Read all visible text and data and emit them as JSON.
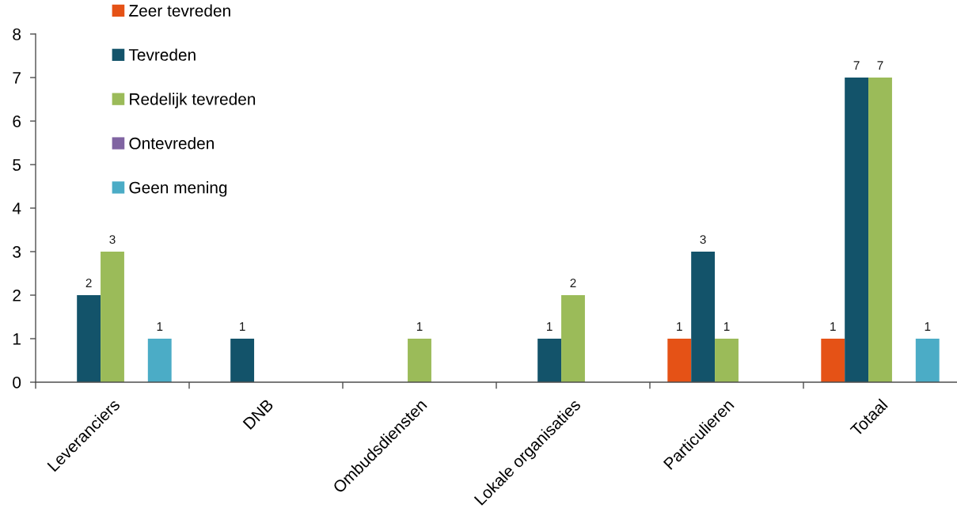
{
  "chart_data": {
    "type": "bar",
    "categories": [
      "Leveranciers",
      "DNB",
      "Ombudsdiensten",
      "Lokale organisaties",
      "Particulieren",
      "Totaal"
    ],
    "series": [
      {
        "name": "Zeer tevreden",
        "color": "#e55216",
        "values": [
          null,
          null,
          null,
          null,
          1,
          1
        ]
      },
      {
        "name": "Tevreden",
        "color": "#13536a",
        "values": [
          2,
          1,
          null,
          1,
          3,
          7
        ]
      },
      {
        "name": "Redelijk tevreden",
        "color": "#9bbb59",
        "values": [
          3,
          null,
          1,
          2,
          1,
          7
        ]
      },
      {
        "name": "Ontevreden",
        "color": "#8064a2",
        "values": [
          null,
          null,
          null,
          null,
          null,
          null
        ]
      },
      {
        "name": "Geen mening",
        "color": "#4bacc6",
        "values": [
          1,
          null,
          null,
          null,
          null,
          1
        ]
      }
    ],
    "ylim": [
      0,
      8
    ],
    "yticks": [
      0,
      1,
      2,
      3,
      4,
      5,
      6,
      7,
      8
    ],
    "data_labels": true,
    "grid": false,
    "legend": "top left"
  }
}
